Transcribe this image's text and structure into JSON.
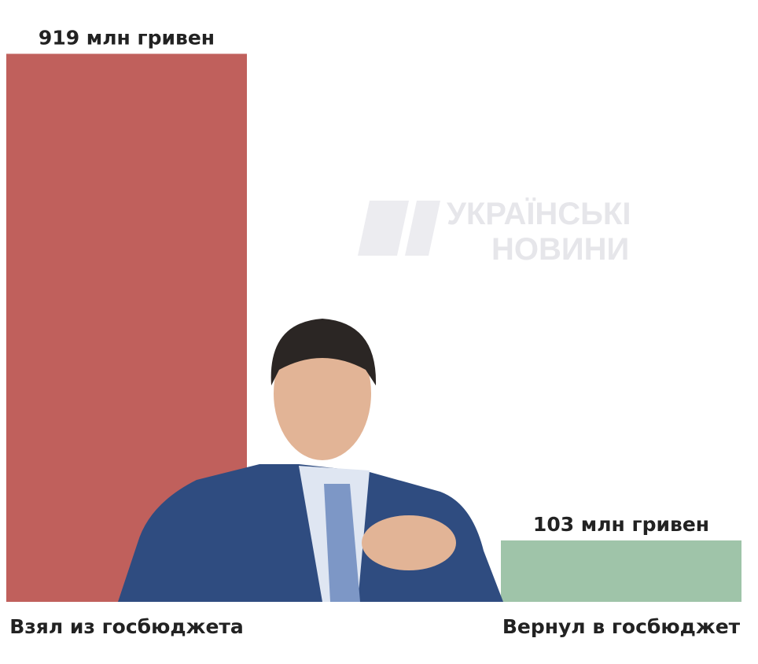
{
  "chart_data": {
    "type": "bar",
    "categories": [
      "Взял из госбюджета",
      "Вернул в госбюджет"
    ],
    "values": [
      919,
      103
    ],
    "value_labels": [
      "919 млн гривен",
      "103 млн гривен"
    ],
    "colors": [
      "#c0605c",
      "#9fc4a9"
    ],
    "ylim": [
      0,
      1000
    ]
  },
  "watermark": {
    "lines": [
      "УКРАЇНСЬКІ",
      "НОВИНИ"
    ]
  }
}
